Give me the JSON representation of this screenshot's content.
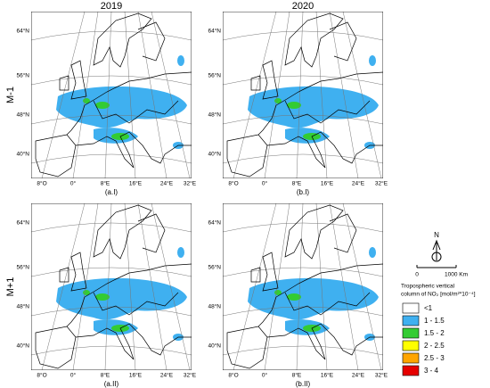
{
  "columns": [
    "2019",
    "2020"
  ],
  "rows": [
    "M-1",
    "M+1"
  ],
  "panels": [
    "(a.I)",
    "(b.I)",
    "(a.II)",
    "(b.II)"
  ],
  "lat_labels": [
    "64°N",
    "56°N",
    "48°N",
    "40°N"
  ],
  "lon_labels": [
    "8°O",
    "0°",
    "8°E",
    "16°E",
    "24°E",
    "32°E"
  ],
  "north_arrow": "N",
  "scale_bar": {
    "start": "0",
    "end": "1000 Km"
  },
  "legend": {
    "title": [
      "Tropospheric vertical",
      "column of NO₂ [mol/m²*10⁻⁴]"
    ],
    "items": [
      {
        "label": "<1",
        "color": "#ffffff"
      },
      {
        "label": "1 - 1.5",
        "color": "#3fb0f0"
      },
      {
        "label": "1.5 - 2",
        "color": "#33cc33"
      },
      {
        "label": "2 - 2.5",
        "color": "#ffff00"
      },
      {
        "label": "2.5 - 3",
        "color": "#ffa500"
      },
      {
        "label": "3 - 4",
        "color": "#e60000"
      }
    ]
  }
}
